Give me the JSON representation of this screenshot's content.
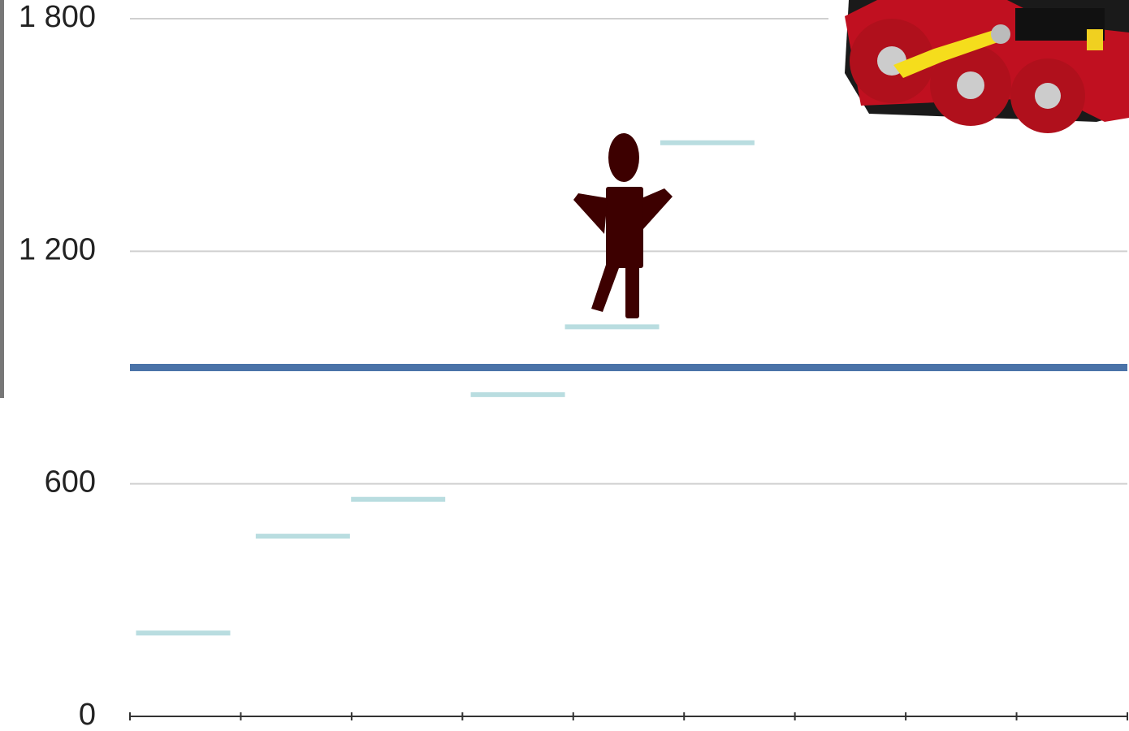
{
  "chart_data": {
    "type": "step-markers",
    "x": [
      0.48,
      1.56,
      2.42,
      3.5,
      4.35,
      5.21
    ],
    "values": [
      215,
      465,
      560,
      830,
      1005,
      1480
    ],
    "color": "#b9dde0",
    "marker_width": 0.85,
    "xlim": [
      0,
      9
    ],
    "xticks": [
      0,
      1,
      2,
      3,
      4,
      5,
      6,
      7,
      8,
      9
    ],
    "ylim": [
      0,
      1800
    ],
    "yticks": [
      0,
      600,
      {
        "value": 1200,
        "label": "1 200"
      },
      {
        "value": 1800,
        "label": "1 800"
      }
    ],
    "grid": true,
    "reference_line": {
      "value": 900,
      "color": "#4a73a8"
    }
  }
}
